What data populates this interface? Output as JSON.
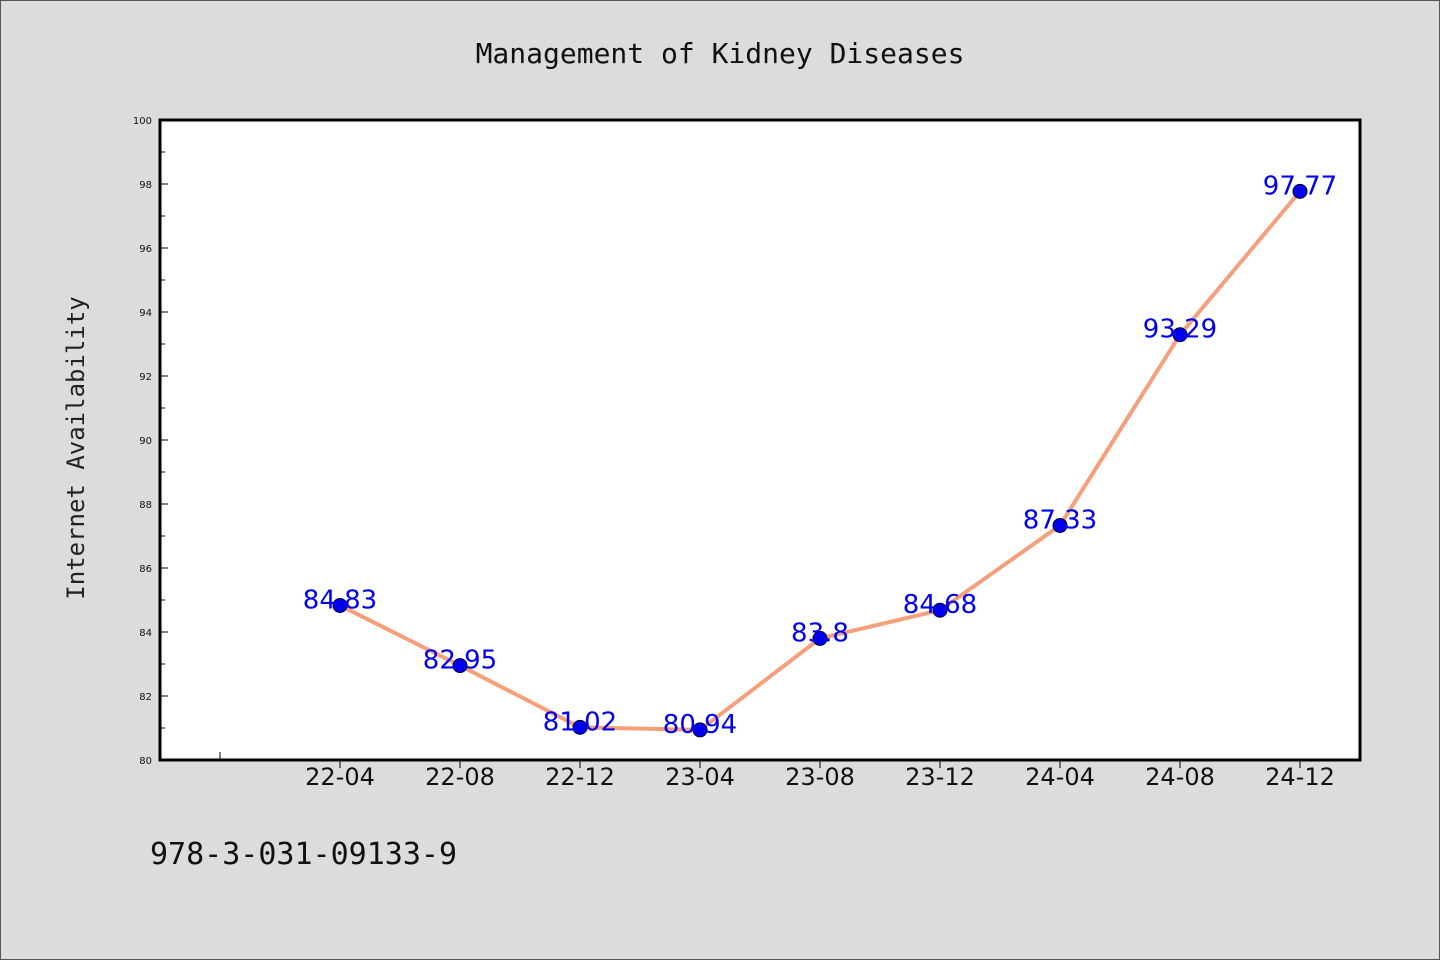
{
  "chart_data": {
    "type": "line",
    "title": "Management of Kidney Diseases",
    "xlabel": "",
    "ylabel": "Internet Availability",
    "categories": [
      "22-04",
      "22-08",
      "22-12",
      "23-04",
      "23-08",
      "23-12",
      "24-04",
      "24-08",
      "24-12"
    ],
    "values": [
      84.83,
      82.95,
      81.02,
      80.94,
      83.8,
      84.68,
      87.33,
      93.29,
      97.77
    ],
    "data_labels": [
      "84.83",
      "82.95",
      "81.02",
      "80.94",
      "83.8",
      "84.68",
      "87.33",
      "93.29",
      "97.77"
    ],
    "ylim": [
      80,
      100
    ],
    "yticks": [
      "80",
      "82",
      "84",
      "86",
      "88",
      "90",
      "92",
      "94",
      "96",
      "98",
      "100"
    ],
    "grid": false,
    "line_color": "#f4a07c",
    "marker_color": "#0000ee",
    "label_color": "#0000ee"
  },
  "footer": {
    "text": "978-3-031-09133-9"
  }
}
